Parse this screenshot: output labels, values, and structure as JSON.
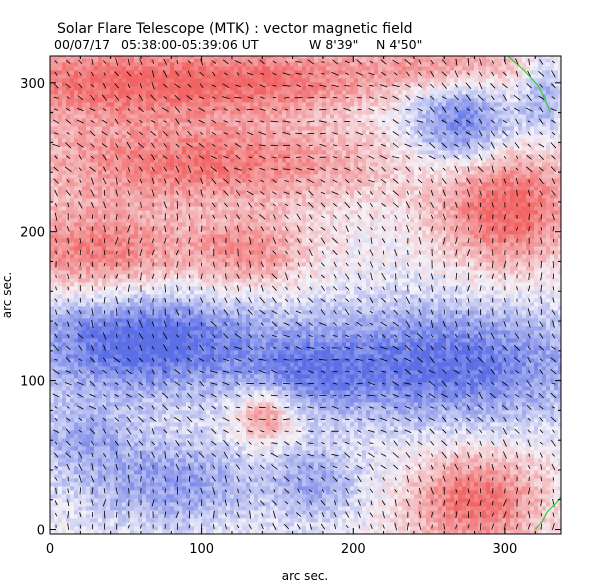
{
  "chart_data": {
    "type": "heatmap",
    "title": "Solar Flare Telescope (MTK) : vector magnetic field",
    "subtitle": {
      "date": "00/07/17",
      "time_range": "05:38:00-05:39:06 UT",
      "longitude": "W 8'39\"",
      "latitude": "N 4'50\""
    },
    "xlabel": "arc sec.",
    "ylabel": "arc sec.",
    "xlim": [
      0,
      337
    ],
    "ylim": [
      -3,
      318
    ],
    "xticks": [
      0,
      100,
      200,
      300
    ],
    "yticks": [
      0,
      100,
      200,
      300
    ],
    "colormap": {
      "positive": "#f26464",
      "negative": "#5a6ee6",
      "neutral": "#f4f2f8"
    },
    "vector_color": "#000000",
    "contour_color": "#33cc33",
    "regions": [
      {
        "polarity": "positive",
        "cx": 40,
        "cy": 300,
        "rx": 90,
        "ry": 28,
        "strength": 0.8
      },
      {
        "polarity": "positive",
        "cx": 150,
        "cy": 300,
        "rx": 70,
        "ry": 22,
        "strength": 0.6
      },
      {
        "polarity": "positive",
        "cx": 260,
        "cy": 310,
        "rx": 60,
        "ry": 18,
        "strength": 0.55
      },
      {
        "polarity": "positive",
        "cx": 100,
        "cy": 245,
        "rx": 120,
        "ry": 28,
        "strength": 0.75
      },
      {
        "polarity": "positive",
        "cx": 30,
        "cy": 185,
        "rx": 60,
        "ry": 30,
        "strength": 0.75
      },
      {
        "polarity": "positive",
        "cx": 130,
        "cy": 185,
        "rx": 40,
        "ry": 25,
        "strength": 0.6
      },
      {
        "polarity": "positive",
        "cx": 300,
        "cy": 215,
        "rx": 45,
        "ry": 40,
        "strength": 0.9
      },
      {
        "polarity": "positive",
        "cx": 280,
        "cy": 18,
        "rx": 42,
        "ry": 32,
        "strength": 0.85
      },
      {
        "polarity": "positive",
        "cx": 140,
        "cy": 75,
        "rx": 18,
        "ry": 18,
        "strength": 0.7
      },
      {
        "polarity": "negative",
        "cx": 60,
        "cy": 125,
        "rx": 80,
        "ry": 35,
        "strength": 0.95
      },
      {
        "polarity": "negative",
        "cx": 260,
        "cy": 110,
        "rx": 95,
        "ry": 40,
        "strength": 0.85
      },
      {
        "polarity": "negative",
        "cx": 170,
        "cy": 105,
        "rx": 40,
        "ry": 25,
        "strength": 0.4
      },
      {
        "polarity": "negative",
        "cx": 270,
        "cy": 270,
        "rx": 35,
        "ry": 30,
        "strength": 0.8
      },
      {
        "polarity": "negative",
        "cx": 325,
        "cy": 290,
        "rx": 15,
        "ry": 30,
        "strength": 0.45
      },
      {
        "polarity": "negative",
        "cx": 80,
        "cy": 30,
        "rx": 60,
        "ry": 30,
        "strength": 0.55
      },
      {
        "polarity": "negative",
        "cx": 175,
        "cy": 30,
        "rx": 30,
        "ry": 25,
        "strength": 0.45
      },
      {
        "polarity": "negative",
        "cx": 20,
        "cy": 60,
        "rx": 35,
        "ry": 25,
        "strength": 0.4
      }
    ],
    "contours": [
      [
        [
          302,
          318
        ],
        [
          313,
          308
        ],
        [
          322,
          298
        ],
        [
          326,
          290
        ],
        [
          330,
          280
        ]
      ],
      [
        [
          320,
          0
        ],
        [
          325,
          6
        ],
        [
          328,
          12
        ],
        [
          334,
          18
        ],
        [
          337,
          22
        ]
      ]
    ]
  }
}
